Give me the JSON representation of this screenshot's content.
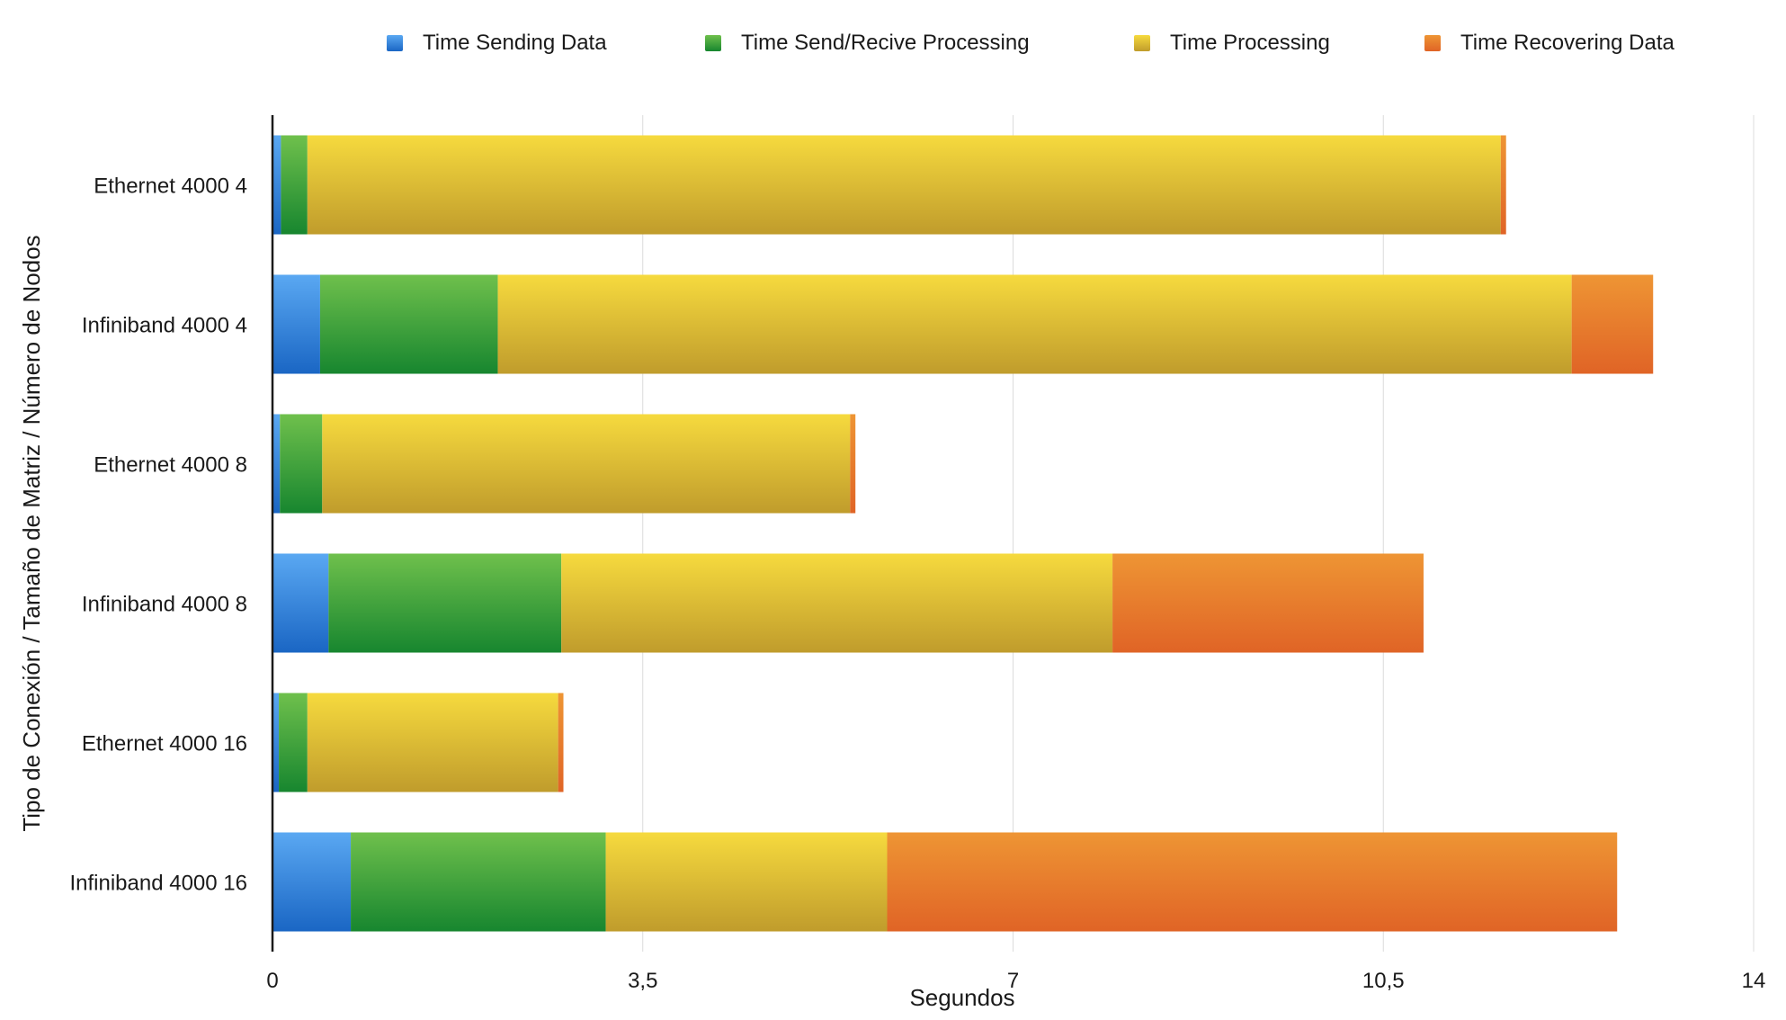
{
  "chart_data": {
    "type": "bar",
    "orientation": "horizontal",
    "stacked": true,
    "categories": [
      "Ethernet 4000 4",
      "Infiniband 4000 4",
      "Ethernet 4000 8",
      "Infiniband 4000 8",
      "Ethernet 4000 16",
      "Infiniband 4000 16"
    ],
    "series": [
      {
        "name": "Time Sending Data",
        "color": "#2f7fd6",
        "values": [
          0.08,
          0.45,
          0.07,
          0.53,
          0.06,
          0.74
        ]
      },
      {
        "name": "Time Send/Recive Processing",
        "color": "#3aa040",
        "values": [
          0.25,
          1.68,
          0.4,
          2.2,
          0.27,
          2.41
        ]
      },
      {
        "name": "Time Processing",
        "color": "#e2c436",
        "values": [
          11.28,
          10.15,
          4.99,
          5.21,
          2.37,
          2.66
        ]
      },
      {
        "name": "Time Recovering Data",
        "color": "#e8782a",
        "values": [
          0.05,
          0.77,
          0.05,
          2.94,
          0.05,
          6.9
        ]
      }
    ],
    "xlabel": "Segundos",
    "ylabel": "Tipo de Conexión / Tamaño de Matriz / Número de Nodos",
    "xlim": [
      0,
      14
    ],
    "xticks": [
      0,
      3.5,
      7,
      10.5,
      14
    ],
    "xtick_labels": [
      "0",
      "3,5",
      "7",
      "10,5",
      "14"
    ],
    "grid": "vertical",
    "legend_position": "top"
  }
}
